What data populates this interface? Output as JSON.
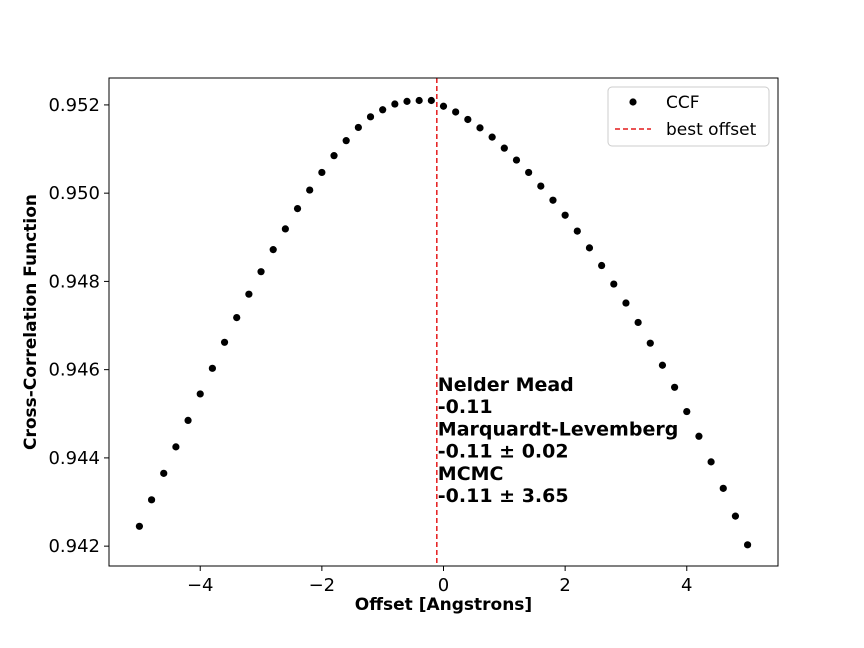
{
  "chart_data": {
    "type": "scatter",
    "xlabel": "Offset [Angstrons]",
    "ylabel": "Cross-Correlation Function",
    "xlim": [
      -5.5,
      5.5
    ],
    "ylim": [
      0.94155,
      0.95261
    ],
    "x_ticks": [
      -4,
      -2,
      0,
      2,
      4
    ],
    "x_tick_labels": [
      "−4",
      "−2",
      "0",
      "2",
      "4"
    ],
    "y_ticks": [
      0.942,
      0.944,
      0.946,
      0.948,
      0.95,
      0.952
    ],
    "y_tick_labels": [
      "0.942",
      "0.944",
      "0.946",
      "0.948",
      "0.950",
      "0.952"
    ],
    "grid": false,
    "legend": {
      "position": "top-right",
      "entries": [
        {
          "label": "CCF",
          "marker": "dot",
          "color": "#000000"
        },
        {
          "label": "best offset",
          "marker": "dashed-line",
          "color": "#e41a1c"
        }
      ]
    },
    "series": [
      {
        "name": "CCF",
        "color": "#000000",
        "x": [
          -5.0,
          -4.8,
          -4.6,
          -4.4,
          -4.2,
          -4.0,
          -3.8,
          -3.6,
          -3.4,
          -3.2,
          -3.0,
          -2.8,
          -2.6,
          -2.4,
          -2.2,
          -2.0,
          -1.8,
          -1.6,
          -1.4,
          -1.2,
          -1.0,
          -0.8,
          -0.6,
          -0.4,
          -0.2,
          0.0,
          0.2,
          0.4,
          0.6,
          0.8,
          1.0,
          1.2,
          1.4,
          1.6,
          1.8,
          2.0,
          2.2,
          2.4,
          2.6,
          2.8,
          3.0,
          3.2,
          3.4,
          3.6,
          3.8,
          4.0,
          4.2,
          4.4,
          4.6,
          4.8,
          5.0
        ],
        "y": [
          0.94245,
          0.94305,
          0.94365,
          0.94425,
          0.94485,
          0.94545,
          0.94603,
          0.94662,
          0.94718,
          0.94771,
          0.94822,
          0.94872,
          0.94919,
          0.94965,
          0.95007,
          0.95047,
          0.95085,
          0.95119,
          0.95149,
          0.95173,
          0.95189,
          0.95202,
          0.95208,
          0.9521,
          0.9521,
          0.95197,
          0.95184,
          0.95167,
          0.95148,
          0.95127,
          0.95102,
          0.95075,
          0.95047,
          0.95016,
          0.94984,
          0.9495,
          0.94914,
          0.94876,
          0.94836,
          0.94794,
          0.94751,
          0.94707,
          0.9466,
          0.9461,
          0.9456,
          0.94505,
          0.94449,
          0.94391,
          0.94331,
          0.94268,
          0.94203
        ]
      }
    ],
    "vlines": [
      {
        "name": "best offset",
        "x": -0.11,
        "color": "#e41a1c",
        "style": "dashed"
      }
    ],
    "annotations": [
      "Nelder Mead",
      "-0.11",
      "Marquardt-Levemberg",
      "-0.11 ± 0.02",
      "MCMC",
      "-0.11 ± 3.65"
    ]
  }
}
